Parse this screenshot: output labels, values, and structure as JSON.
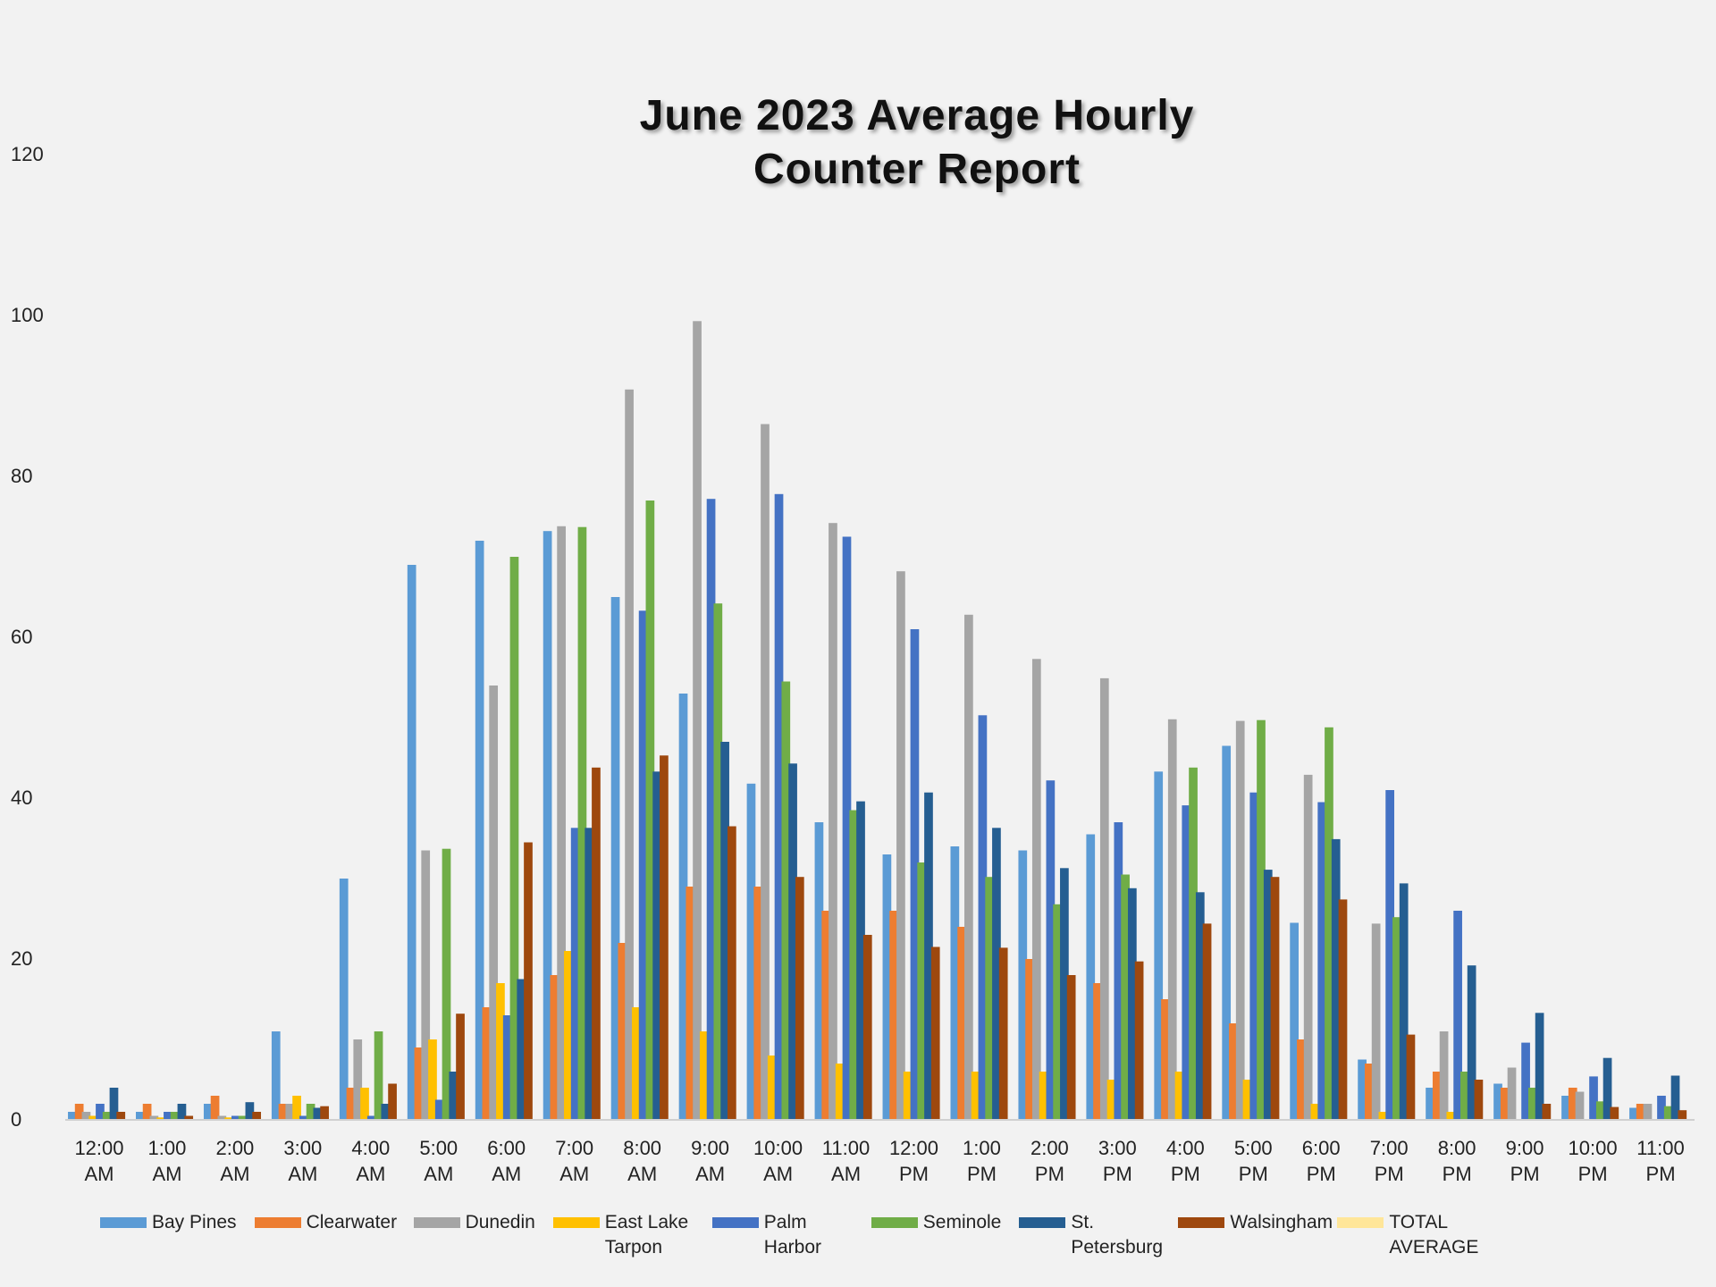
{
  "chart_data": {
    "type": "bar",
    "title": "June 2023 Average Hourly Counter Report",
    "categories": [
      "12:00 AM",
      "1:00 AM",
      "2:00 AM",
      "3:00 AM",
      "4:00 AM",
      "5:00 AM",
      "6:00 AM",
      "7:00 AM",
      "8:00 AM",
      "9:00 AM",
      "10:00 AM",
      "11:00 AM",
      "12:00 PM",
      "1:00 PM",
      "2:00 PM",
      "3:00 PM",
      "4:00 PM",
      "5:00 PM",
      "6:00 PM",
      "7:00 PM",
      "8:00 PM",
      "9:00 PM",
      "10:00 PM",
      "11:00 PM"
    ],
    "series": [
      {
        "name": "Bay Pines",
        "color": "#5b9bd5",
        "values": [
          1,
          1,
          2,
          11,
          30,
          69,
          72,
          73.2,
          65,
          53,
          41.8,
          37,
          33,
          34,
          33.5,
          35.5,
          43.3,
          46.5,
          24.5,
          7.5,
          4,
          4.5,
          3,
          1.5
        ]
      },
      {
        "name": "Clearwater",
        "color": "#ed7d31",
        "values": [
          2,
          2,
          3,
          2,
          4,
          9,
          14,
          18,
          22,
          29,
          29,
          26,
          26,
          24,
          20,
          17,
          15,
          12,
          10,
          7,
          6,
          4,
          4,
          2
        ]
      },
      {
        "name": "Dunedin",
        "color": "#a5a5a5",
        "values": [
          1,
          0.5,
          0.5,
          2,
          10,
          33.5,
          54,
          73.8,
          90.8,
          99.3,
          86.5,
          74.2,
          68.2,
          62.8,
          57.3,
          54.9,
          49.8,
          49.6,
          42.9,
          24.4,
          11,
          6.5,
          3.5,
          2
        ]
      },
      {
        "name": "East Lake Tarpon",
        "color": "#ffc000",
        "values": [
          0.5,
          0.3,
          0.3,
          3,
          4,
          10,
          17,
          21,
          14,
          11,
          8,
          7,
          6,
          6,
          6,
          5,
          6,
          5,
          2,
          1,
          1,
          0,
          0,
          0
        ]
      },
      {
        "name": "Palm Harbor",
        "color": "#4472c4",
        "values": [
          2,
          1,
          0.5,
          0.5,
          0.5,
          2.5,
          13,
          36.3,
          63.3,
          77.2,
          77.8,
          72.5,
          61,
          50.3,
          42.2,
          37,
          39.1,
          40.7,
          39.5,
          41,
          26,
          9.6,
          5.4,
          3
        ]
      },
      {
        "name": "Seminole",
        "color": "#70ad47",
        "values": [
          1,
          1,
          0.5,
          2,
          11,
          33.7,
          70,
          73.7,
          77,
          64.2,
          54.5,
          38.5,
          32,
          30.2,
          26.8,
          30.5,
          43.8,
          49.7,
          48.8,
          25.2,
          6,
          4,
          2.3,
          1.7
        ]
      },
      {
        "name": "St. Petersburg",
        "color": "#255e91",
        "values": [
          4,
          2,
          2.2,
          1.5,
          2,
          6,
          17.5,
          36.3,
          43.3,
          47,
          44.3,
          39.6,
          40.7,
          36.3,
          31.3,
          28.8,
          28.3,
          31.1,
          34.9,
          29.4,
          19.2,
          13.3,
          7.7,
          5.5
        ]
      },
      {
        "name": "Walsingham",
        "color": "#9e480e",
        "values": [
          1,
          0.5,
          1,
          1.7,
          4.5,
          13.2,
          34.5,
          43.8,
          45.3,
          36.5,
          30.2,
          23,
          21.5,
          21.4,
          18,
          19.7,
          24.4,
          30.2,
          27.4,
          10.6,
          5,
          2,
          1.6,
          1.2
        ]
      },
      {
        "name": "TOTAL AVERAGE",
        "color": "#ffe699",
        "values": [
          null,
          null,
          null,
          null,
          null,
          null,
          null,
          null,
          null,
          null,
          null,
          null,
          null,
          null,
          null,
          null,
          null,
          null,
          null,
          null,
          null,
          null,
          null,
          null
        ]
      }
    ],
    "ylim": [
      0,
      120
    ],
    "yticks": [
      0,
      20,
      40,
      60,
      80,
      100,
      120
    ],
    "grid": false
  }
}
